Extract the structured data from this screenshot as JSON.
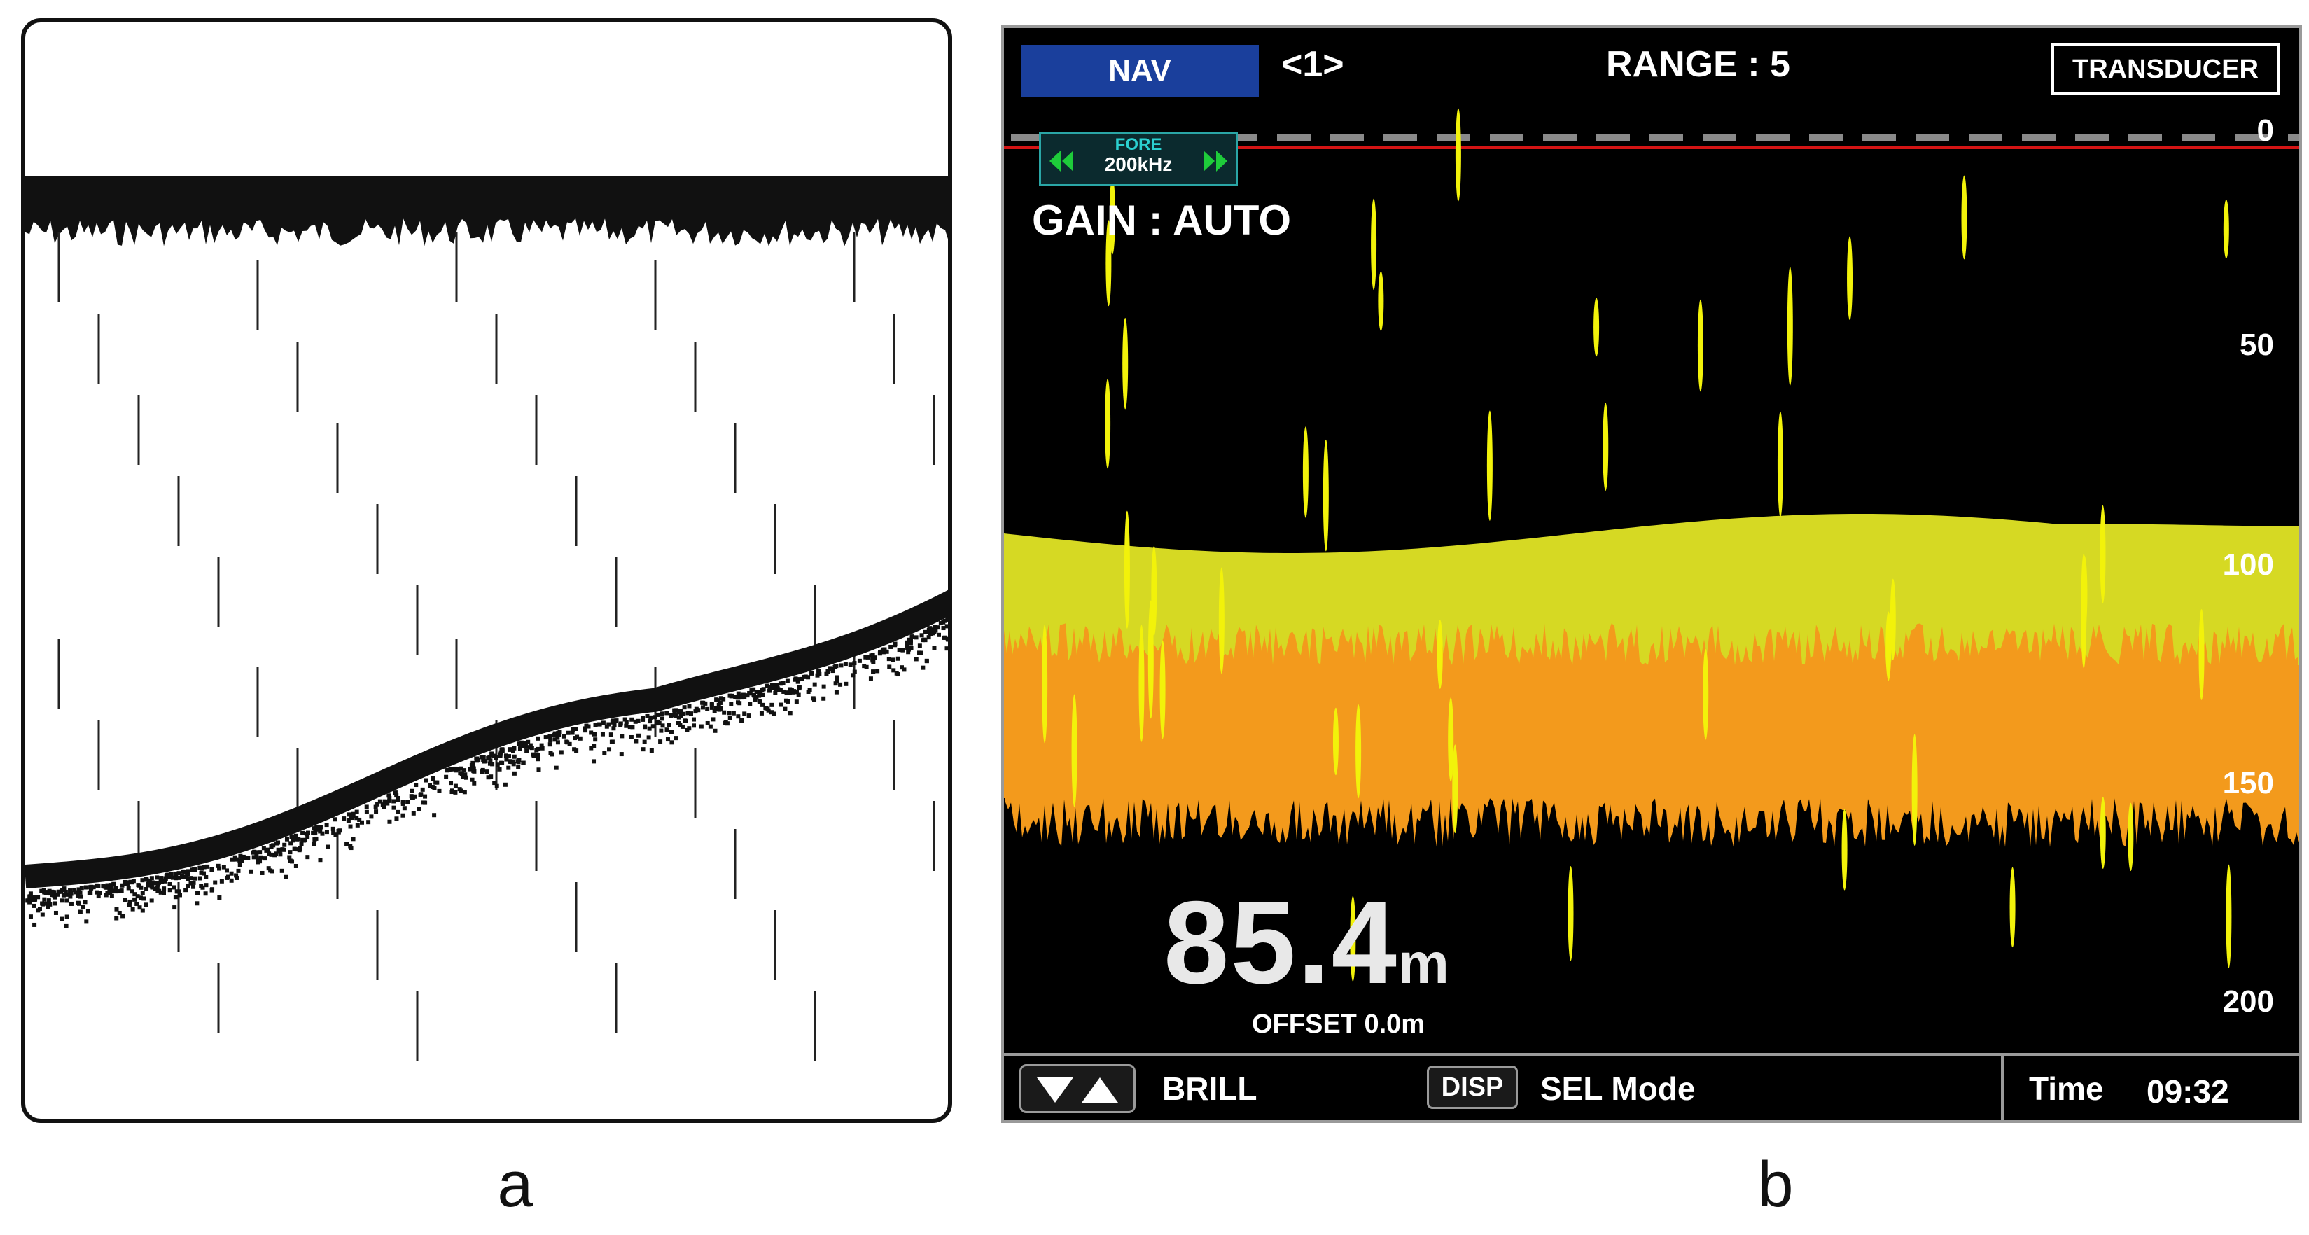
{
  "panel_a": {
    "caption": "a"
  },
  "panel_b": {
    "caption": "b",
    "header": {
      "mode_button": "NAV",
      "page_indicator": "<1>",
      "range": "RANGE : 5",
      "transducer_button": "TRANSDUCER"
    },
    "frequency_box": {
      "direction": "FORE",
      "frequency": "200kHz"
    },
    "gain": "GAIN :  AUTO",
    "depth": {
      "value": "85.4",
      "unit": "m"
    },
    "offset": "OFFSET  0.0m",
    "depth_scale": [
      "0",
      "50",
      "100",
      "150",
      "200"
    ],
    "footer": {
      "updown_icon": "up-down-arrows-icon",
      "brill": "BRILL",
      "disp": "DISP",
      "sel_mode": "SEL  Mode",
      "time_label": "Time",
      "time_value": "09:32"
    },
    "colors": {
      "nav_blue": "#1a3f9c",
      "bottom_yellow": "#d6d923",
      "bottom_orange": "#f39a1c",
      "surface_line": "#d41414",
      "noise_yellow": "#f2f20a"
    }
  }
}
